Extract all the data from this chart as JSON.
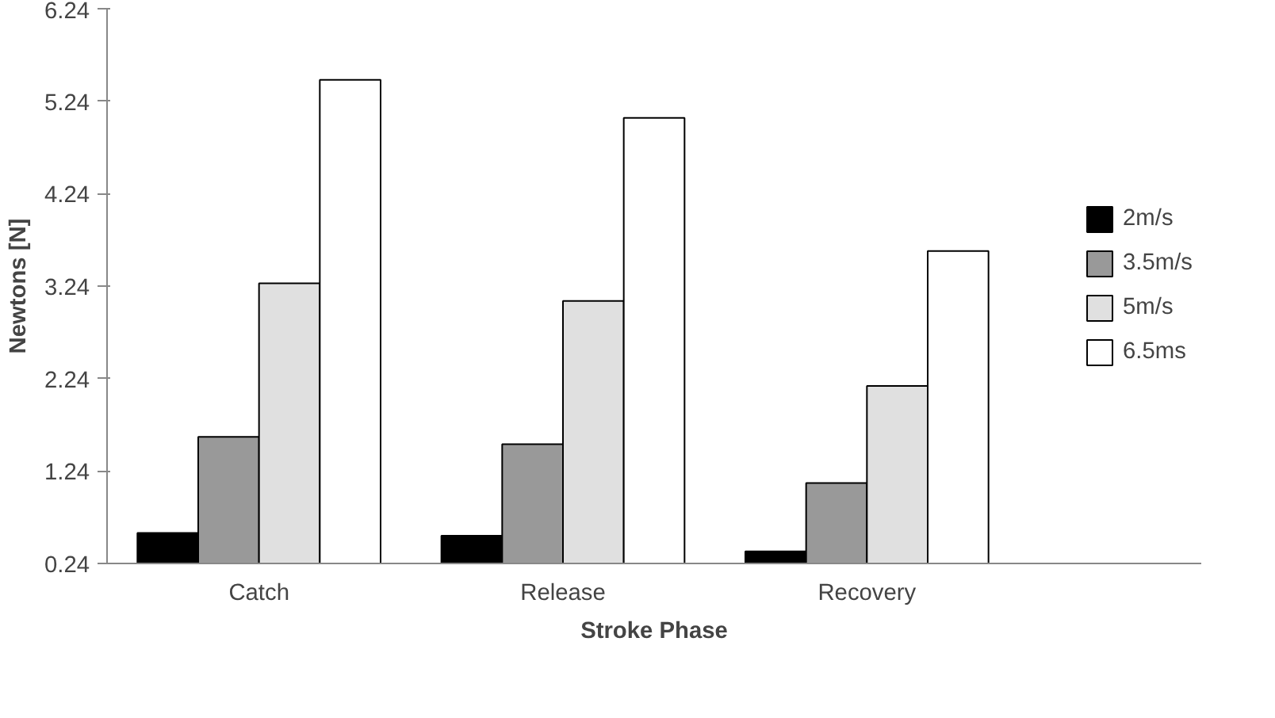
{
  "chart_data": {
    "type": "bar",
    "xlabel": "Stroke Phase",
    "ylabel": "Newtons [N]",
    "categories": [
      "Catch",
      "Release",
      "Recovery"
    ],
    "series": [
      {
        "name": "2m/s",
        "color": "#000000",
        "values": [
          0.57,
          0.54,
          0.37
        ]
      },
      {
        "name": "3.5m/s",
        "color": "#999999",
        "values": [
          1.61,
          1.53,
          1.11
        ]
      },
      {
        "name": "5m/s",
        "color": "#e0e0e0",
        "values": [
          3.27,
          3.08,
          2.16
        ]
      },
      {
        "name": "6.5ms",
        "color": "#ffffff",
        "values": [
          5.47,
          5.06,
          3.62
        ]
      }
    ],
    "ylim": [
      0.24,
      6.24
    ],
    "yticks": [
      0.24,
      1.24,
      2.24,
      3.24,
      4.24,
      5.24,
      6.24
    ],
    "grid": false,
    "legend": "right"
  }
}
